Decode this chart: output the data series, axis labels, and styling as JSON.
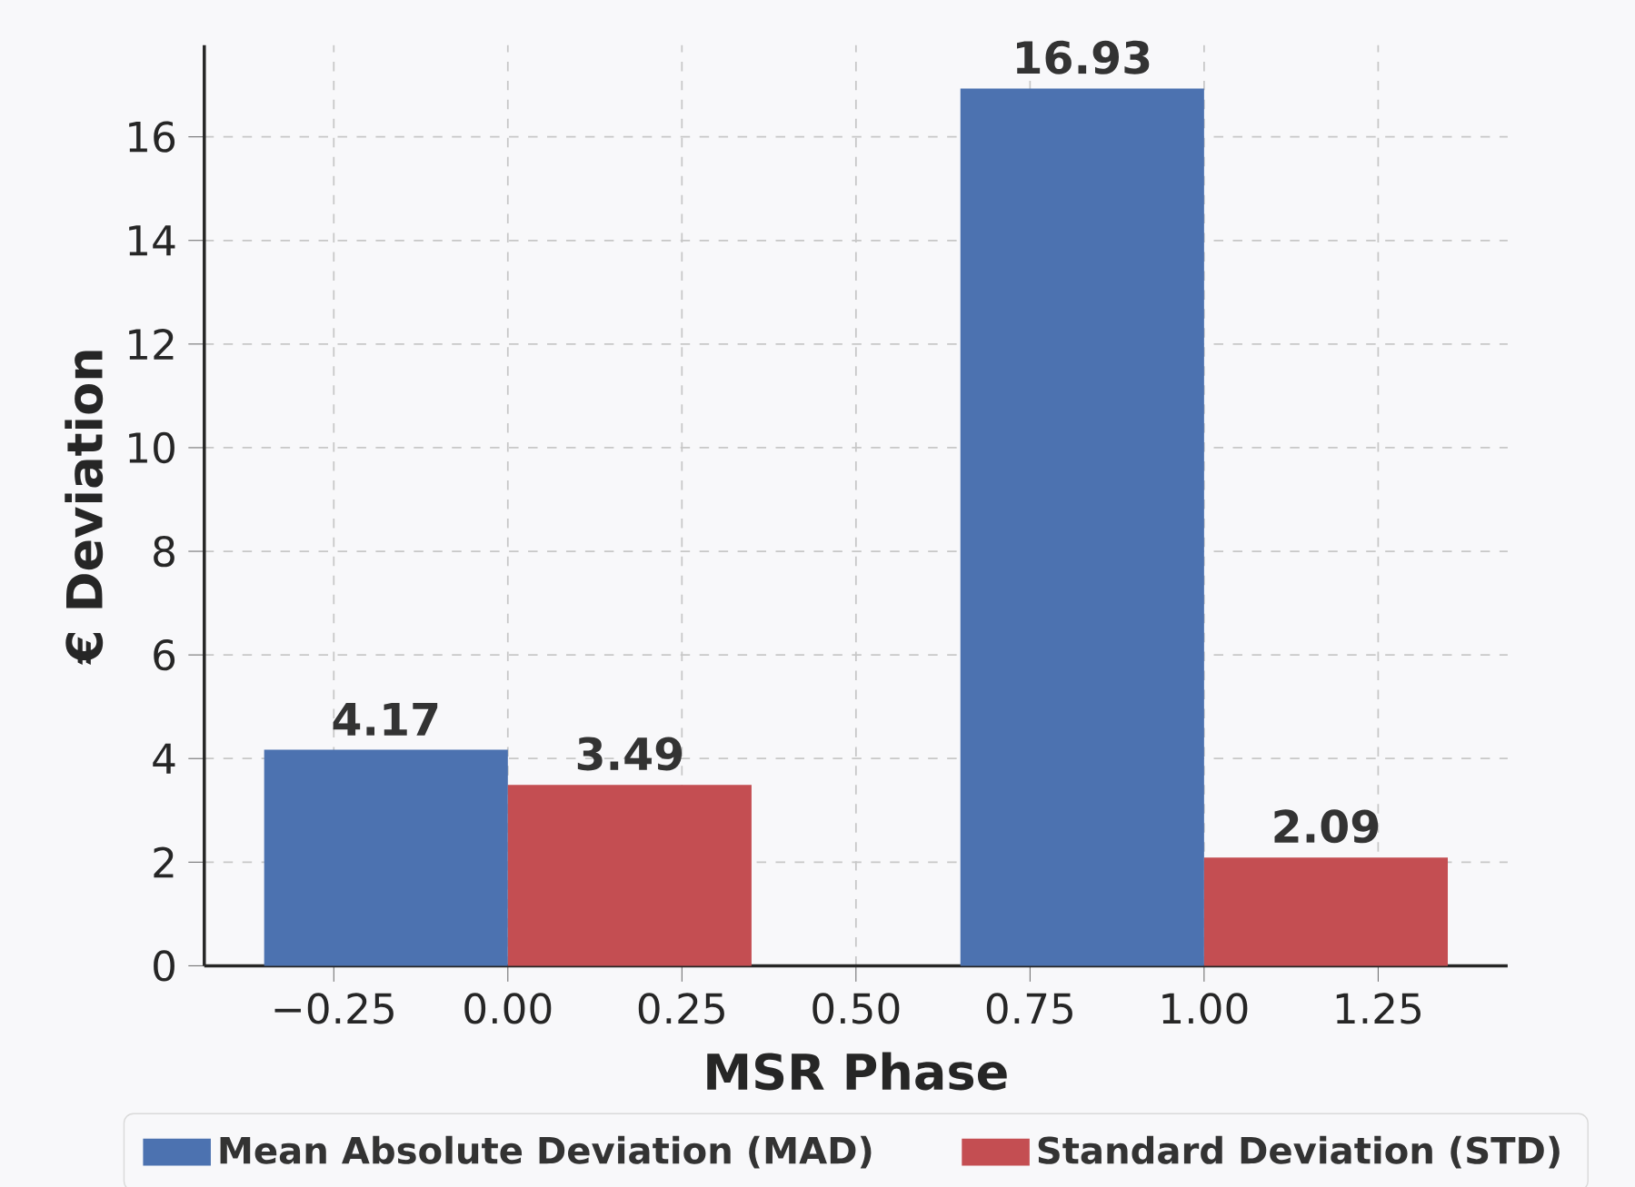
{
  "chart_data": {
    "type": "bar",
    "xlabel": "MSR Phase",
    "ylabel": "€ Deviation",
    "xlim": [
      -0.436,
      1.436
    ],
    "ylim": [
      0,
      17.77
    ],
    "xticks": [
      {
        "value": -0.25,
        "label": "−0.25"
      },
      {
        "value": 0,
        "label": "0.00"
      },
      {
        "value": 0.25,
        "label": "0.25"
      },
      {
        "value": 0.5,
        "label": "0.50"
      },
      {
        "value": 0.75,
        "label": "0.75"
      },
      {
        "value": 1,
        "label": "1.00"
      },
      {
        "value": 1.25,
        "label": "1.25"
      }
    ],
    "yticks": [
      0,
      2,
      4,
      6,
      8,
      10,
      12,
      14,
      16
    ],
    "series": [
      {
        "name": "Mean Absolute Deviation (MAD)",
        "color": "#4c72b0",
        "x": [
          -0.175,
          0.825
        ],
        "values": [
          4.17,
          16.93
        ]
      },
      {
        "name": "Standard Deviation (STD)",
        "color": "#c44e52",
        "x": [
          0.175,
          1.175
        ],
        "values": [
          3.49,
          2.09
        ]
      }
    ],
    "data_labels": true,
    "grid": true,
    "legend": "bottom"
  }
}
